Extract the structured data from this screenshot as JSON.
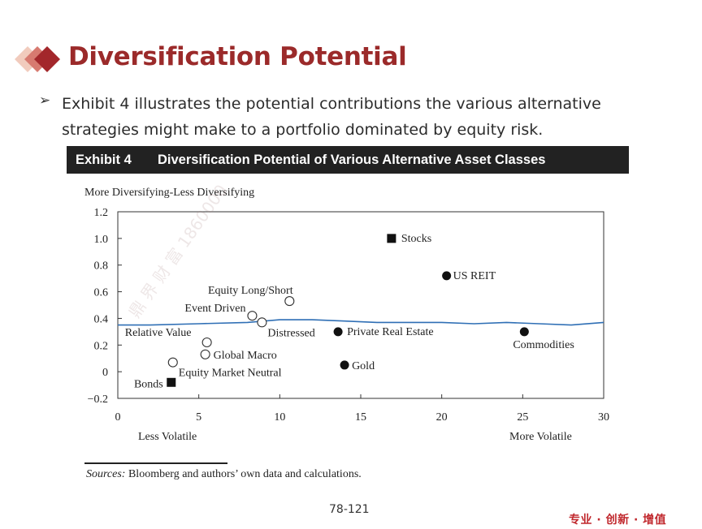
{
  "slide": {
    "title": "Diversification Potential",
    "bullet": "Exhibit 4 illustrates the potential contributions the various alternative strategies might make to a portfolio dominated by equity risk.",
    "bullet_marker": "➢",
    "page_number": "78-121",
    "slogan": "专业 · 创新 · 增值",
    "watermark": "鼎 界 财 富 1860000"
  },
  "exhibit": {
    "number": "Exhibit 4",
    "title": "Diversification Potential of Various Alternative Asset Classes"
  },
  "sources": {
    "label": "Sources:",
    "text": " Bloomberg and authors’ own data and calculations."
  },
  "chart_data": {
    "type": "scatter",
    "title": "Diversification Potential of Various Alternative Asset Classes",
    "ylabel": "More Diversifying-Less Diversifying",
    "xlabel_left": "Less Volatile",
    "xlabel_right": "More Volatile",
    "xlim": [
      0,
      30
    ],
    "ylim": [
      -0.2,
      1.2
    ],
    "xticks": [
      0,
      5,
      10,
      15,
      20,
      25,
      30
    ],
    "yticks": [
      -0.2,
      0,
      0.2,
      0.4,
      0.6,
      0.8,
      1.0,
      1.2
    ],
    "ytick_labels": [
      "−0.2",
      "0",
      "0.2",
      "0.4",
      "0.6",
      "0.8",
      "1.0",
      "1.2"
    ],
    "grid": false,
    "points": [
      {
        "label": "Stocks",
        "x": 16.9,
        "y": 1.0,
        "marker": "square"
      },
      {
        "label": "US REIT",
        "x": 20.3,
        "y": 0.72,
        "marker": "filled-circle"
      },
      {
        "label": "Equity Long/Short",
        "x": 10.6,
        "y": 0.53,
        "marker": "open-circle"
      },
      {
        "label": "Event Driven",
        "x": 8.3,
        "y": 0.42,
        "marker": "open-circle"
      },
      {
        "label": "Distressed",
        "x": 8.9,
        "y": 0.37,
        "marker": "open-circle"
      },
      {
        "label": "Relative Value",
        "x": 5.5,
        "y": 0.22,
        "marker": "open-circle"
      },
      {
        "label": "Global Macro",
        "x": 5.4,
        "y": 0.13,
        "marker": "open-circle"
      },
      {
        "label": "Equity Market Neutral",
        "x": 3.4,
        "y": 0.07,
        "marker": "open-circle"
      },
      {
        "label": "Bonds",
        "x": 3.3,
        "y": -0.08,
        "marker": "square"
      },
      {
        "label": "Private Real Estate",
        "x": 13.6,
        "y": 0.3,
        "marker": "filled-circle"
      },
      {
        "label": "Gold",
        "x": 14.0,
        "y": 0.05,
        "marker": "filled-circle"
      },
      {
        "label": "Commodities",
        "x": 25.1,
        "y": 0.3,
        "marker": "filled-circle"
      }
    ],
    "trend_line": {
      "x": [
        0,
        2,
        5,
        8,
        10,
        12,
        14,
        16,
        18,
        20,
        22,
        24,
        26,
        28,
        30
      ],
      "y": [
        0.35,
        0.35,
        0.36,
        0.37,
        0.39,
        0.39,
        0.38,
        0.37,
        0.37,
        0.37,
        0.36,
        0.37,
        0.36,
        0.35,
        0.37
      ],
      "color": "#2f6fb5"
    }
  }
}
